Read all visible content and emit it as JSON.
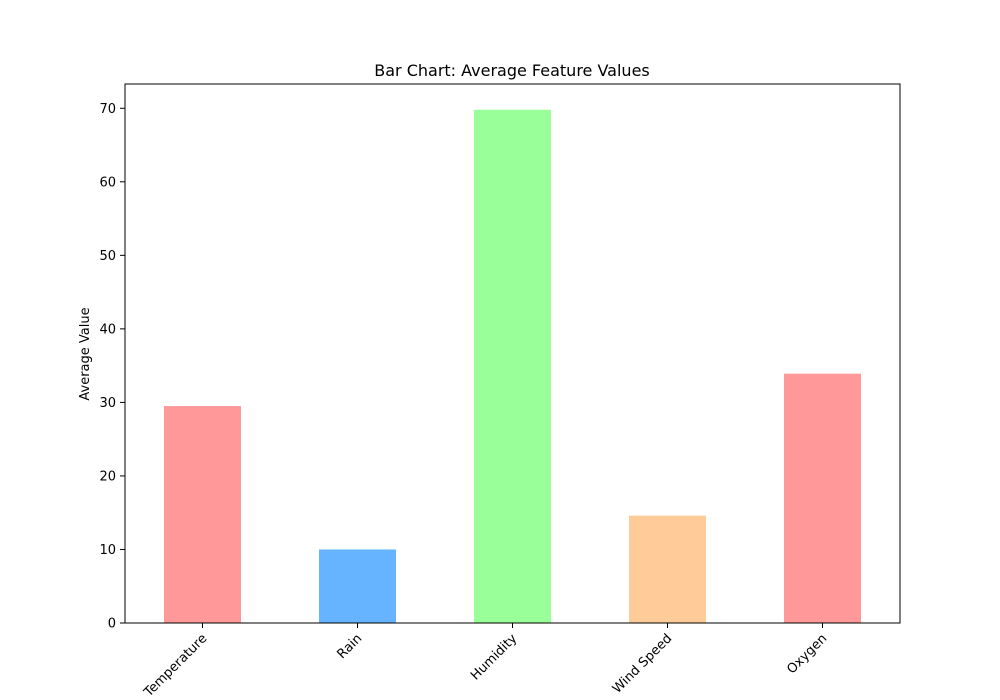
{
  "chart_data": {
    "type": "bar",
    "title": "Bar Chart: Average Feature Values",
    "xlabel": "",
    "ylabel": "Average Value",
    "categories": [
      "Temperature",
      "Rain",
      "Humidity",
      "Wind Speed",
      "Oxygen"
    ],
    "values": [
      29.5,
      10.0,
      69.8,
      14.6,
      33.9
    ],
    "colors": [
      "#ff9999",
      "#66b3ff",
      "#99ff99",
      "#ffcc99",
      "#ff9999"
    ],
    "ylim": [
      0,
      73.3
    ],
    "yticks": [
      0,
      10,
      20,
      30,
      40,
      50,
      60,
      70
    ],
    "grid": false,
    "legend": "none"
  }
}
